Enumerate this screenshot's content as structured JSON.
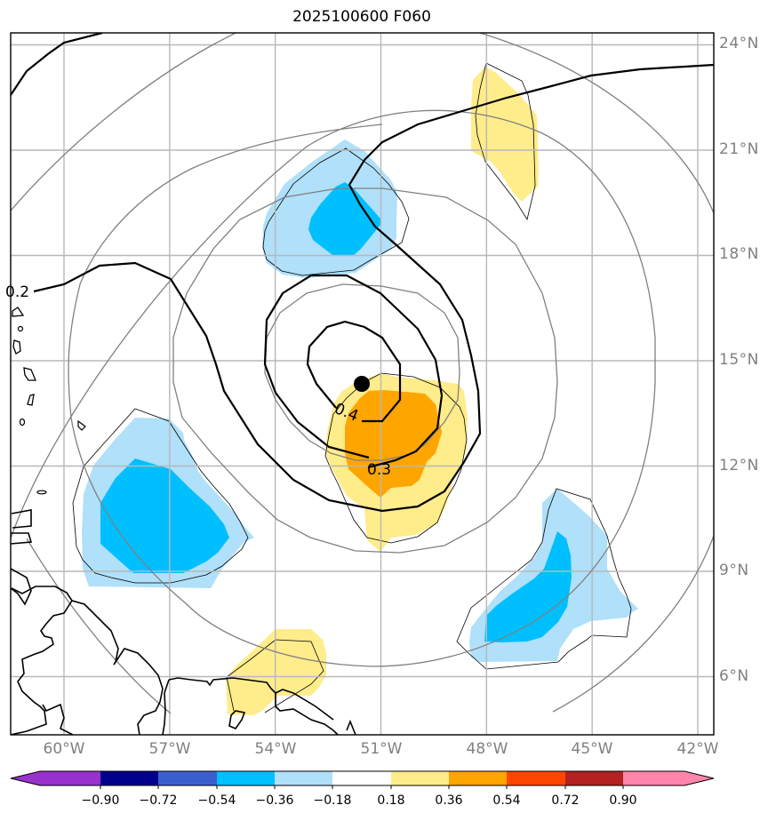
{
  "title": "2025100600 F060",
  "map": {
    "projection": "PlateCarree",
    "lon_range": [
      -62,
      -41.3
    ],
    "lat_range": [
      4.5,
      24.3
    ],
    "lat_ticks": [
      {
        "value": 24,
        "label": "24°N"
      },
      {
        "value": 21,
        "label": "21°N"
      },
      {
        "value": 18,
        "label": "18°N"
      },
      {
        "value": 15,
        "label": "15°N"
      },
      {
        "value": 12,
        "label": "12°N"
      },
      {
        "value": 9,
        "label": "9°N"
      },
      {
        "value": 6,
        "label": "6°N"
      }
    ],
    "lon_ticks": [
      {
        "value": -60,
        "label": "60°W"
      },
      {
        "value": -57,
        "label": "57°W"
      },
      {
        "value": -54,
        "label": "54°W"
      },
      {
        "value": -51,
        "label": "51°W"
      },
      {
        "value": -48,
        "label": "48°W"
      },
      {
        "value": -45,
        "label": "45°W"
      },
      {
        "value": -42,
        "label": "42°W"
      }
    ],
    "storm_center": {
      "lon": -51.6,
      "lat": 14.3
    },
    "contour_labels": [
      {
        "text": "0.2",
        "lon": -61.7,
        "lat": 17.5
      },
      {
        "text": "0.4",
        "lon": -52.0,
        "lat": 13.3
      },
      {
        "text": "0.3",
        "lon": -51.0,
        "lat": 12.0
      }
    ],
    "colors": {
      "grid": "#b8b8b8",
      "ring": "#808080",
      "contour": "#000000",
      "coast": "#000000"
    }
  },
  "colorbar": {
    "levels": [
      "−0.90",
      "−0.72",
      "−0.54",
      "−0.36",
      "−0.18",
      "0.18",
      "0.36",
      "0.54",
      "0.72",
      "0.90"
    ],
    "colors": [
      "#9932cc",
      "#00008b",
      "#3a5fcd",
      "#00bfff",
      "#b0e0fa",
      "#ffffff",
      "#ffec8b",
      "#ffa500",
      "#ff4500",
      "#b22222",
      "#ff85ab"
    ]
  }
}
